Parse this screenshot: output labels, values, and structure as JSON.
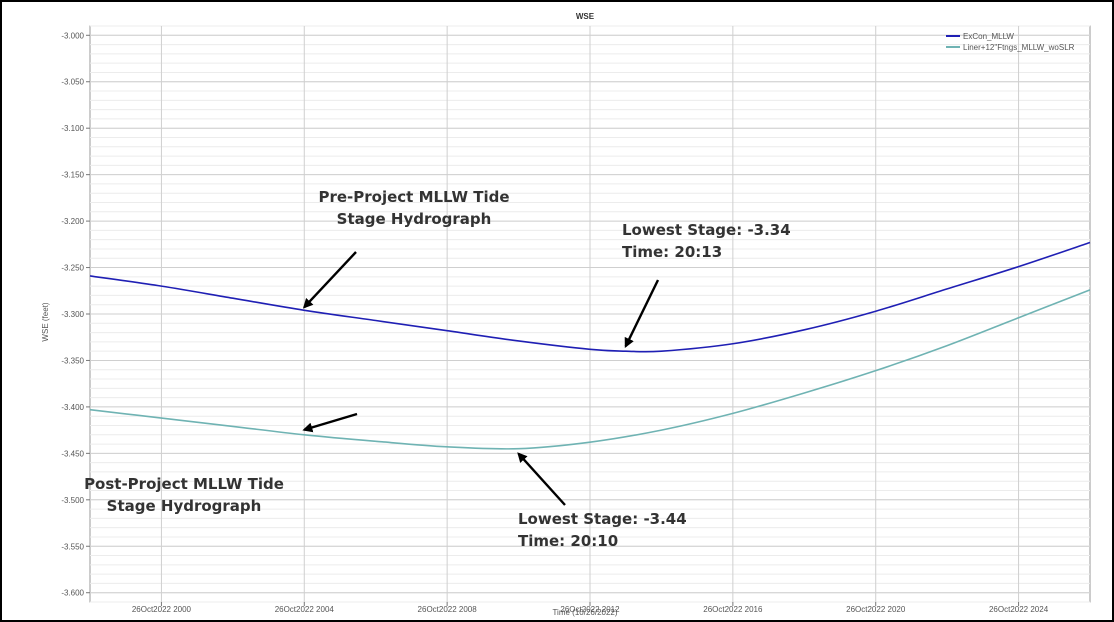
{
  "chart_data": {
    "type": "line",
    "title": "WSE",
    "xlabel": "Time (10/26/2022)",
    "ylabel": "WSE (feet)",
    "ylim": [
      -3.61,
      -2.99
    ],
    "yticks": [
      -3.0,
      -3.05,
      -3.1,
      -3.15,
      -3.2,
      -3.25,
      -3.3,
      -3.35,
      -3.4,
      -3.45,
      -3.5,
      -3.55,
      -3.6
    ],
    "ytick_labels": [
      "-3.000",
      "-3.050",
      "-3.100",
      "-3.150",
      "-3.200",
      "-3.250",
      "-3.300",
      "-3.350",
      "-3.400",
      "-3.450",
      "-3.500",
      "-3.550",
      "-3.600"
    ],
    "xlim": [
      "19:58",
      "20:26"
    ],
    "xticks": [
      "20:00",
      "20:04",
      "20:08",
      "20:12",
      "20:16",
      "20:20",
      "20:24"
    ],
    "xtick_labels": [
      "26Oct2022 2000",
      "26Oct2022 2004",
      "26Oct2022 2008",
      "26Oct2022 2012",
      "26Oct2022 2016",
      "26Oct2022 2020",
      "26Oct2022 2024"
    ],
    "grid": true,
    "legend_position": "top-right",
    "series": [
      {
        "name": "ExCon_MLLW",
        "color": "#1f1fb4",
        "x": [
          "19:58",
          "20:00",
          "20:02",
          "20:04",
          "20:06",
          "20:08",
          "20:10",
          "20:12",
          "20:13",
          "20:14",
          "20:16",
          "20:18",
          "20:20",
          "20:22",
          "20:24",
          "20:26"
        ],
        "y": [
          -3.259,
          -3.27,
          -3.283,
          -3.296,
          -3.307,
          -3.318,
          -3.329,
          -3.338,
          -3.34,
          -3.34,
          -3.332,
          -3.317,
          -3.297,
          -3.273,
          -3.249,
          -3.223
        ]
      },
      {
        "name": "Liner+12\"Ftngs_MLLW_woSLR",
        "color": "#6fb3b3",
        "x": [
          "19:58",
          "20:00",
          "20:02",
          "20:04",
          "20:06",
          "20:08",
          "20:10",
          "20:12",
          "20:14",
          "20:16",
          "20:18",
          "20:20",
          "20:22",
          "20:24",
          "20:26"
        ],
        "y": [
          -3.403,
          -3.412,
          -3.421,
          -3.43,
          -3.437,
          -3.443,
          -3.445,
          -3.438,
          -3.425,
          -3.407,
          -3.385,
          -3.361,
          -3.334,
          -3.304,
          -3.274
        ]
      }
    ],
    "annotations": [
      {
        "lines": [
          "Pre-Project MLLW Tide",
          "Stage Hydrograph"
        ],
        "arrow_to": {
          "x": "20:04",
          "y": -3.298
        }
      },
      {
        "lines": [
          "Lowest Stage: -3.34",
          "Time: 20:13"
        ],
        "arrow_to": {
          "x": "20:13",
          "y": -3.34
        }
      },
      {
        "lines": [
          "Post-Project MLLW Tide",
          "Stage Hydrograph"
        ],
        "arrow_to": {
          "x": "20:04",
          "y": -3.43
        }
      },
      {
        "lines": [
          "Lowest Stage: -3.44",
          "Time: 20:10"
        ],
        "arrow_to": {
          "x": "20:10",
          "y": -3.445
        }
      }
    ]
  }
}
